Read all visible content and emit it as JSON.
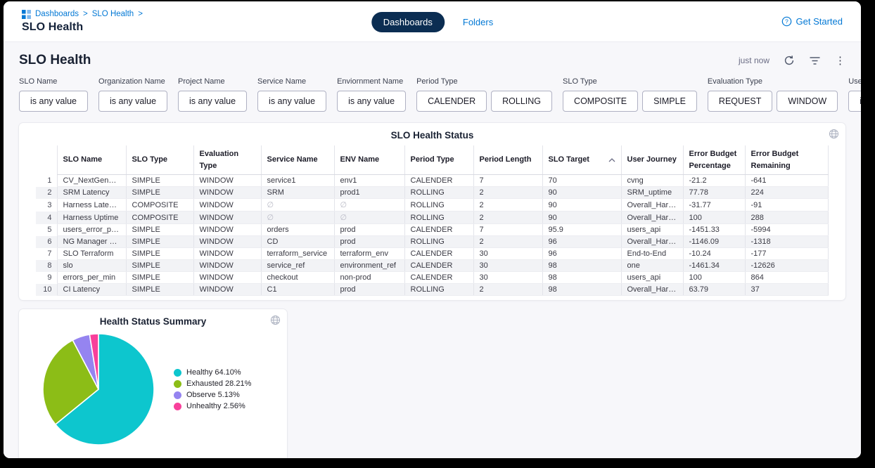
{
  "colors": {
    "accent": "#0278D5",
    "tab_pill": "#0B2D52",
    "healthy": "#0DC6CE",
    "exhausted": "#8CBD17",
    "observe": "#9584F0",
    "unhealthy": "#F8409B"
  },
  "topbar": {
    "breadcrumb": {
      "links": [
        "Dashboards",
        "SLO Health"
      ],
      "separator": ">"
    },
    "title": "SLO Health",
    "tabs": [
      {
        "label": "Dashboards",
        "active": true
      },
      {
        "label": "Folders",
        "active": false
      }
    ],
    "get_started": "Get Started"
  },
  "header": {
    "title": "SLO Health",
    "last_refreshed": "just now"
  },
  "filters": [
    {
      "label": "SLO Name",
      "buttons": [
        "is any value"
      ]
    },
    {
      "label": "Organization Name",
      "buttons": [
        "is any value"
      ]
    },
    {
      "label": "Project Name",
      "buttons": [
        "is any value"
      ]
    },
    {
      "label": "Service Name",
      "buttons": [
        "is any value"
      ]
    },
    {
      "label": "Enviornment Name",
      "buttons": [
        "is any value"
      ]
    },
    {
      "label": "Period Type",
      "buttons": [
        "CALENDER",
        "ROLLING"
      ]
    },
    {
      "label": "SLO Type",
      "buttons": [
        "COMPOSITE",
        "SIMPLE"
      ]
    },
    {
      "label": "Evaluation Type",
      "buttons": [
        "REQUEST",
        "WINDOW"
      ]
    },
    {
      "label": "User Journey",
      "buttons": [
        "is any value"
      ]
    }
  ],
  "table": {
    "title": "SLO Health Status",
    "columns": [
      "SLO Name",
      "SLO Type",
      "Evaluation Type",
      "Service Name",
      "ENV Name",
      "Period Type",
      "Period Length",
      "SLO Target",
      "User Journey",
      "Error Budget Percentage",
      "Error Budget Remaining"
    ],
    "sort_column": "SLO Target",
    "sort_direction": "asc",
    "rows": [
      [
        "CV_NextGen_Prod",
        "SIMPLE",
        "WINDOW",
        "service1",
        "env1",
        "CALENDER",
        "7",
        "70",
        "cvng",
        "-21.2",
        "-641"
      ],
      [
        "SRM Latency",
        "SIMPLE",
        "WINDOW",
        "SRM",
        "prod1",
        "ROLLING",
        "2",
        "90",
        "SRM_uptime",
        "77.78",
        "224"
      ],
      [
        "Harness Latency",
        "COMPOSITE",
        "WINDOW",
        "∅",
        "∅",
        "ROLLING",
        "2",
        "90",
        "Overall_Harness",
        "-31.77",
        "-91"
      ],
      [
        "Harness Uptime",
        "COMPOSITE",
        "WINDOW",
        "∅",
        "∅",
        "ROLLING",
        "2",
        "90",
        "Overall_Harness",
        "100",
        "288"
      ],
      [
        "users_error_per_min",
        "SIMPLE",
        "WINDOW",
        "orders",
        "prod",
        "CALENDER",
        "7",
        "95.9",
        "users_api",
        "-1451.33",
        "-5994"
      ],
      [
        "NG Manager Latency",
        "SIMPLE",
        "WINDOW",
        "CD",
        "prod",
        "ROLLING",
        "2",
        "96",
        "Overall_Harness",
        "-1146.09",
        "-1318"
      ],
      [
        "SLO Terraform",
        "SIMPLE",
        "WINDOW",
        "terraform_service",
        "terraform_env",
        "CALENDER",
        "30",
        "96",
        "End-to-End",
        "-10.24",
        "-177"
      ],
      [
        "slo",
        "SIMPLE",
        "WINDOW",
        "service_ref",
        "environment_ref",
        "CALENDER",
        "30",
        "98",
        "one",
        "-1461.34",
        "-12626"
      ],
      [
        "errors_per_min",
        "SIMPLE",
        "WINDOW",
        "checkout",
        "non-prod",
        "CALENDER",
        "30",
        "98",
        "users_api",
        "100",
        "864"
      ],
      [
        "CI Latency",
        "SIMPLE",
        "WINDOW",
        "C1",
        "prod",
        "ROLLING",
        "2",
        "98",
        "Overall_Harness",
        "63.79",
        "37"
      ]
    ]
  },
  "chart_data": {
    "type": "pie",
    "title": "Health Status Summary",
    "legend_position": "right",
    "start_angle_deg": 0,
    "direction": "clockwise",
    "slices": [
      {
        "label": "Healthy",
        "value": 64.1,
        "legend": "Healthy 64.10%",
        "color": "#0DC6CE"
      },
      {
        "label": "Exhausted",
        "value": 28.21,
        "legend": "Exhausted 28.21%",
        "color": "#8CBD17"
      },
      {
        "label": "Observe",
        "value": 5.13,
        "legend": "Observe 5.13%",
        "color": "#9584F0"
      },
      {
        "label": "Unhealthy",
        "value": 2.56,
        "legend": "Unhealthy 2.56%",
        "color": "#F8409B"
      }
    ]
  }
}
